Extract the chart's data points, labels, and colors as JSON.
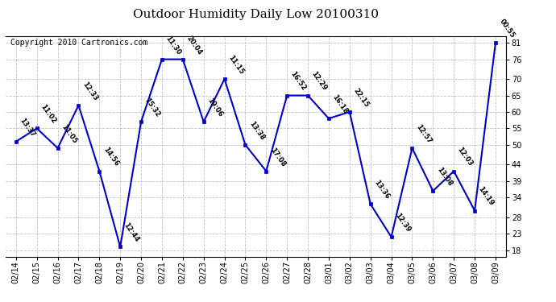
{
  "title": "Outdoor Humidity Daily Low 20100310",
  "copyright": "Copyright 2010 Cartronics.com",
  "dates": [
    "02/14",
    "02/15",
    "02/16",
    "02/17",
    "02/18",
    "02/19",
    "02/20",
    "02/21",
    "02/22",
    "02/23",
    "02/24",
    "02/25",
    "02/26",
    "02/27",
    "02/28",
    "03/01",
    "03/02",
    "03/03",
    "03/04",
    "03/05",
    "03/06",
    "03/07",
    "03/08",
    "03/09"
  ],
  "values": [
    51,
    55,
    49,
    62,
    42,
    19,
    57,
    76,
    76,
    57,
    70,
    50,
    42,
    65,
    65,
    58,
    60,
    32,
    22,
    49,
    36,
    42,
    30,
    81
  ],
  "times": [
    "13:37",
    "11:02",
    "11:05",
    "12:33",
    "14:56",
    "12:44",
    "15:32",
    "11:30",
    "20:04",
    "19:06",
    "11:15",
    "13:38",
    "17:08",
    "16:52",
    "12:29",
    "16:18",
    "22:15",
    "13:36",
    "12:39",
    "12:57",
    "13:08",
    "12:03",
    "14:19",
    "00:55"
  ],
  "yticks": [
    18,
    23,
    28,
    34,
    39,
    44,
    50,
    55,
    60,
    65,
    70,
    76,
    81
  ],
  "ylim": [
    16,
    83
  ],
  "xlim": [
    -0.5,
    23.5
  ],
  "line_color": "#0000CC",
  "marker_color": "#0000CC",
  "grid_color": "#C0C0C0",
  "bg_color": "#FFFFFF",
  "title_fontsize": 11,
  "annotation_fontsize": 6,
  "tick_fontsize": 7,
  "copyright_fontsize": 7
}
